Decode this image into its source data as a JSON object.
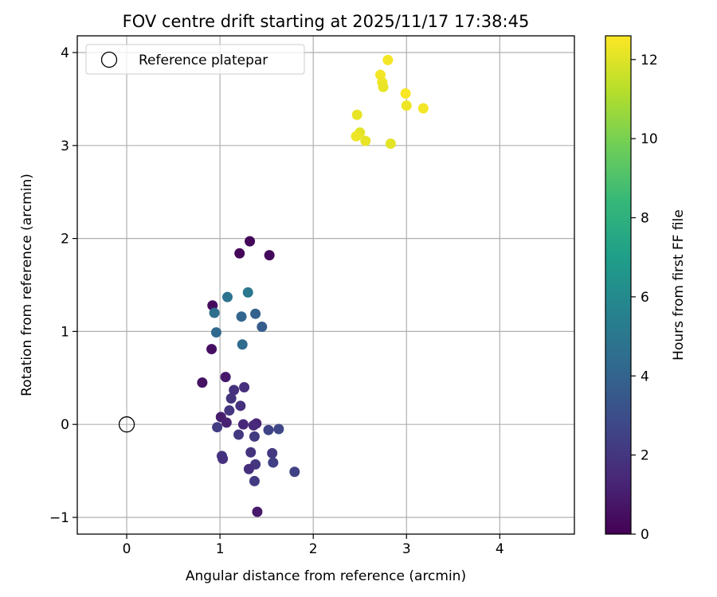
{
  "chart_data": {
    "type": "scatter",
    "title": "FOV centre drift starting at 2025/11/17 17:38:45",
    "xlabel": "Angular distance from reference (arcmin)",
    "ylabel": "Rotation from reference (arcmin)",
    "xlim": [
      -0.53,
      4.8
    ],
    "ylim": [
      -1.18,
      4.18
    ],
    "xticks": [
      0,
      1,
      2,
      3,
      4
    ],
    "xtick_labels": [
      "0",
      "1",
      "2",
      "3",
      "4"
    ],
    "yticks": [
      -1,
      0,
      1,
      2,
      3,
      4
    ],
    "ytick_labels": [
      "−1",
      "0",
      "1",
      "2",
      "3",
      "4"
    ],
    "grid": true,
    "legend": {
      "location": "top-left",
      "label": "Reference platepar"
    },
    "reference_point": {
      "x": 0,
      "y": 0
    },
    "colorbar": {
      "label": "Hours from first FF file",
      "min": 0,
      "max": 12.6,
      "ticks": [
        0,
        2,
        4,
        6,
        8,
        10,
        12
      ],
      "tick_labels": [
        "0",
        "2",
        "4",
        "6",
        "8",
        "10",
        "12"
      ],
      "colormap": [
        "#440154",
        "#482878",
        "#3e4989",
        "#31688e",
        "#26828e",
        "#1f9e89",
        "#35b779",
        "#6ece58",
        "#b5de2b",
        "#fde725"
      ]
    },
    "points": [
      {
        "x": 1.32,
        "y": 1.97,
        "c": 0.1
      },
      {
        "x": 1.21,
        "y": 1.84,
        "c": 0.2
      },
      {
        "x": 1.53,
        "y": 1.82,
        "c": 0.3
      },
      {
        "x": 0.92,
        "y": 1.28,
        "c": 0.4
      },
      {
        "x": 0.91,
        "y": 0.81,
        "c": 0.5
      },
      {
        "x": 0.81,
        "y": 0.45,
        "c": 0.6
      },
      {
        "x": 1.06,
        "y": 0.51,
        "c": 0.8
      },
      {
        "x": 1.01,
        "y": 0.08,
        "c": 1.0
      },
      {
        "x": 1.07,
        "y": 0.02,
        "c": 1.2
      },
      {
        "x": 1.39,
        "y": 0.01,
        "c": 1.3
      },
      {
        "x": 1.25,
        "y": 0.0,
        "c": 1.4
      },
      {
        "x": 1.36,
        "y": -0.01,
        "c": 1.5
      },
      {
        "x": 1.4,
        "y": -0.94,
        "c": 0.9
      },
      {
        "x": 1.15,
        "y": 0.37,
        "c": 1.8
      },
      {
        "x": 1.26,
        "y": 0.4,
        "c": 1.7
      },
      {
        "x": 1.12,
        "y": 0.28,
        "c": 1.9
      },
      {
        "x": 1.22,
        "y": 0.2,
        "c": 1.8
      },
      {
        "x": 1.1,
        "y": 0.15,
        "c": 2.0
      },
      {
        "x": 0.97,
        "y": -0.03,
        "c": 2.3
      },
      {
        "x": 1.2,
        "y": -0.11,
        "c": 2.1
      },
      {
        "x": 1.37,
        "y": -0.13,
        "c": 2.2
      },
      {
        "x": 1.52,
        "y": -0.06,
        "c": 2.6
      },
      {
        "x": 1.63,
        "y": -0.05,
        "c": 2.7
      },
      {
        "x": 1.02,
        "y": -0.34,
        "c": 1.9
      },
      {
        "x": 1.03,
        "y": -0.37,
        "c": 1.8
      },
      {
        "x": 1.33,
        "y": -0.3,
        "c": 1.9
      },
      {
        "x": 1.56,
        "y": -0.31,
        "c": 2.1
      },
      {
        "x": 1.57,
        "y": -0.41,
        "c": 2.4
      },
      {
        "x": 1.38,
        "y": -0.43,
        "c": 2.0
      },
      {
        "x": 1.31,
        "y": -0.48,
        "c": 1.7
      },
      {
        "x": 1.37,
        "y": -0.61,
        "c": 2.2
      },
      {
        "x": 1.8,
        "y": -0.51,
        "c": 2.5
      },
      {
        "x": 1.3,
        "y": 1.42,
        "c": 5.0
      },
      {
        "x": 1.08,
        "y": 1.37,
        "c": 4.8
      },
      {
        "x": 0.94,
        "y": 1.2,
        "c": 4.6
      },
      {
        "x": 1.23,
        "y": 1.16,
        "c": 4.1
      },
      {
        "x": 1.38,
        "y": 1.19,
        "c": 3.9
      },
      {
        "x": 1.45,
        "y": 1.05,
        "c": 3.7
      },
      {
        "x": 0.96,
        "y": 0.99,
        "c": 4.2
      },
      {
        "x": 1.24,
        "y": 0.86,
        "c": 4.4
      },
      {
        "x": 2.8,
        "y": 3.92,
        "c": 12.4
      },
      {
        "x": 2.72,
        "y": 3.76,
        "c": 12.4
      },
      {
        "x": 2.74,
        "y": 3.68,
        "c": 12.3
      },
      {
        "x": 2.75,
        "y": 3.63,
        "c": 12.2
      },
      {
        "x": 2.99,
        "y": 3.56,
        "c": 12.5
      },
      {
        "x": 3.0,
        "y": 3.43,
        "c": 12.3
      },
      {
        "x": 3.18,
        "y": 3.4,
        "c": 12.4
      },
      {
        "x": 2.47,
        "y": 3.33,
        "c": 12.2
      },
      {
        "x": 2.5,
        "y": 3.14,
        "c": 12.1
      },
      {
        "x": 2.46,
        "y": 3.1,
        "c": 12.3
      },
      {
        "x": 2.56,
        "y": 3.05,
        "c": 12.2
      },
      {
        "x": 2.83,
        "y": 3.02,
        "c": 12.1
      }
    ]
  }
}
